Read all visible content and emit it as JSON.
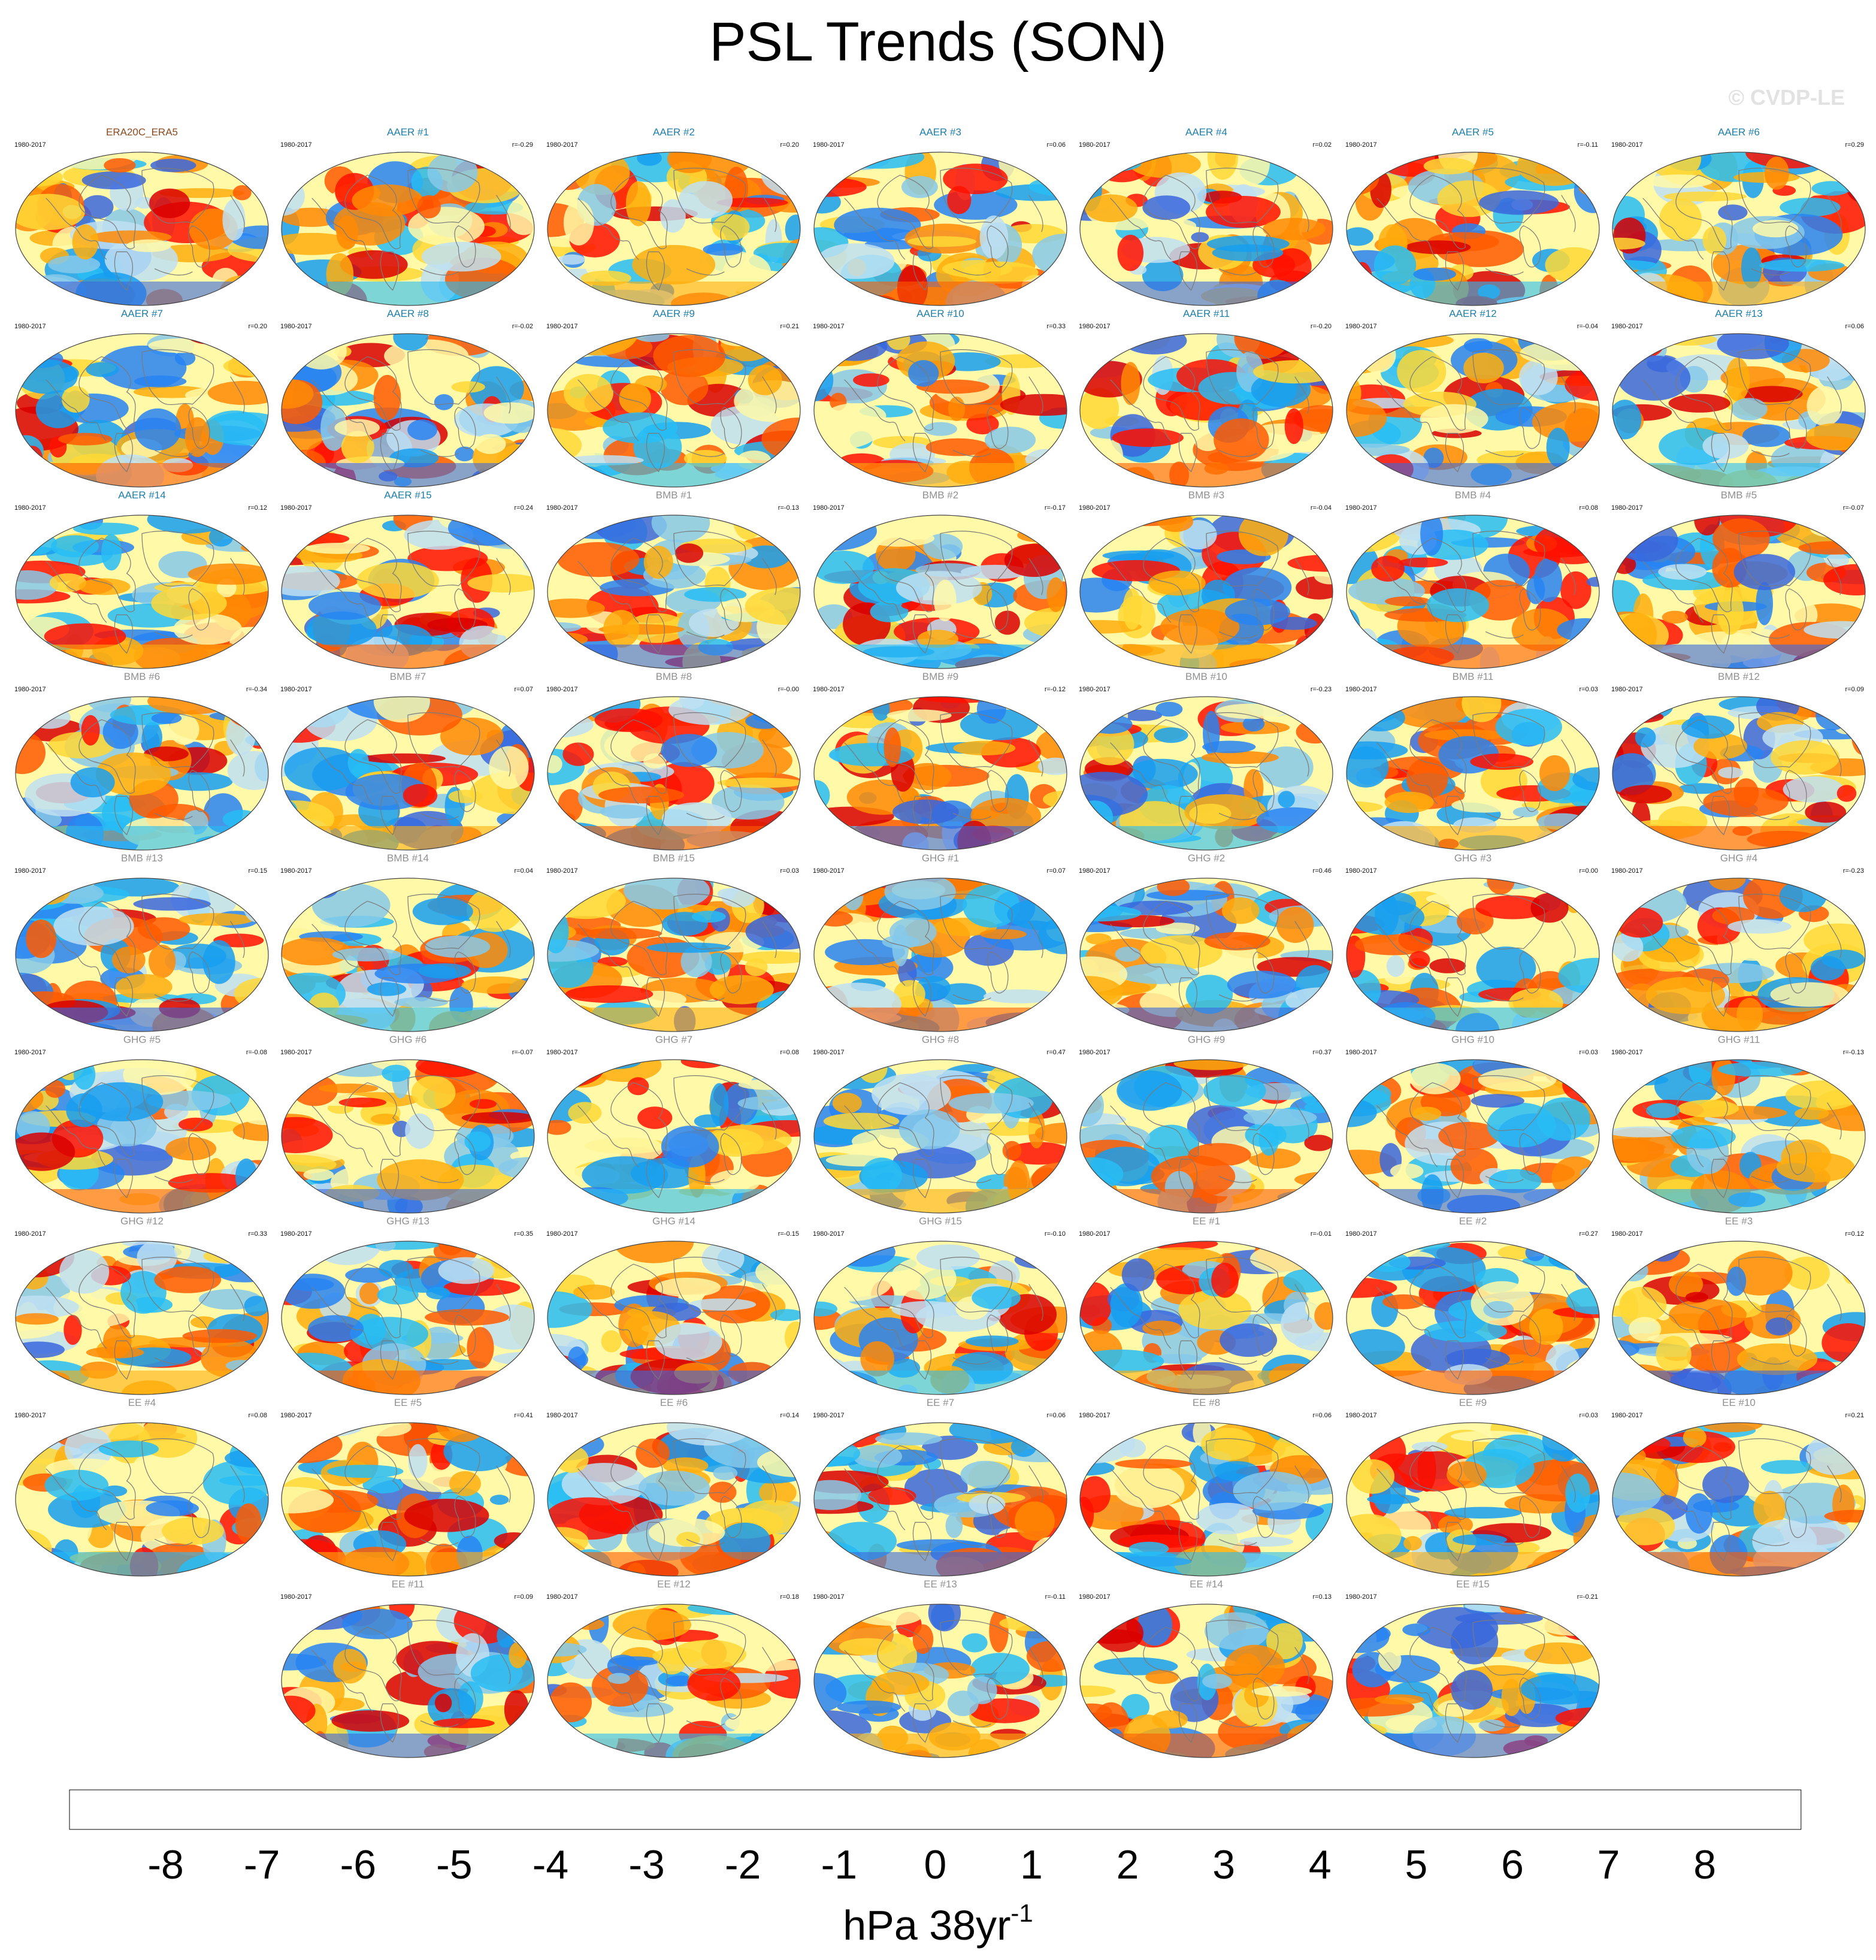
{
  "title": "PSL Trends (SON)",
  "copyright": "© CVDP-LE",
  "chart_data": {
    "type": "heatmap",
    "title": "PSL Trends (SON)",
    "period": "1980-2017",
    "colors": {
      "reference_name": "#8a4b1e",
      "aer_name": "#1f7fa8",
      "other_name": "#909090",
      "land_outline": "#7a7a7a"
    },
    "panels": [
      {
        "name": "ERA20C_ERA5",
        "r": ""
      },
      {
        "name": "AAER #1",
        "r": "r=-0.29"
      },
      {
        "name": "AAER #2",
        "r": "r=0.20"
      },
      {
        "name": "AAER #3",
        "r": "r=0.06"
      },
      {
        "name": "AAER #4",
        "r": "r=0.02"
      },
      {
        "name": "AAER #5",
        "r": "r=-0.11"
      },
      {
        "name": "AAER #6",
        "r": "r=0.29"
      },
      {
        "name": "AAER #7",
        "r": "r=0.20"
      },
      {
        "name": "AAER #8",
        "r": "r=-0.02"
      },
      {
        "name": "AAER #9",
        "r": "r=0.21"
      },
      {
        "name": "AAER #10",
        "r": "r=0.33"
      },
      {
        "name": "AAER #11",
        "r": "r=-0.20"
      },
      {
        "name": "AAER #12",
        "r": "r=-0.04"
      },
      {
        "name": "AAER #13",
        "r": "r=0.06"
      },
      {
        "name": "AAER #14",
        "r": "r=0.12"
      },
      {
        "name": "AAER #15",
        "r": "r=0.24"
      },
      {
        "name": "BMB #1",
        "r": "r=-0.13"
      },
      {
        "name": "BMB #2",
        "r": "r=-0.17"
      },
      {
        "name": "BMB #3",
        "r": "r=-0.04"
      },
      {
        "name": "BMB #4",
        "r": "r=0.08"
      },
      {
        "name": "BMB #5",
        "r": "r=-0.07"
      },
      {
        "name": "BMB #6",
        "r": "r=-0.34"
      },
      {
        "name": "BMB #7",
        "r": "r=0.07"
      },
      {
        "name": "BMB #8",
        "r": "r=-0.00"
      },
      {
        "name": "BMB #9",
        "r": "r=-0.12"
      },
      {
        "name": "BMB #10",
        "r": "r=-0.23"
      },
      {
        "name": "BMB #11",
        "r": "r=0.03"
      },
      {
        "name": "BMB #12",
        "r": "r=0.09"
      },
      {
        "name": "BMB #13",
        "r": "r=0.15"
      },
      {
        "name": "BMB #14",
        "r": "r=0.04"
      },
      {
        "name": "BMB #15",
        "r": "r=0.03"
      },
      {
        "name": "GHG #1",
        "r": "r=0.07"
      },
      {
        "name": "GHG #2",
        "r": "r=0.46"
      },
      {
        "name": "GHG #3",
        "r": "r=0.00"
      },
      {
        "name": "GHG #4",
        "r": "r=-0.23"
      },
      {
        "name": "GHG #5",
        "r": "r=-0.08"
      },
      {
        "name": "GHG #6",
        "r": "r=-0.07"
      },
      {
        "name": "GHG #7",
        "r": "r=0.08"
      },
      {
        "name": "GHG #8",
        "r": "r=0.47"
      },
      {
        "name": "GHG #9",
        "r": "r=0.37"
      },
      {
        "name": "GHG #10",
        "r": "r=0.03"
      },
      {
        "name": "GHG #11",
        "r": "r=-0.13"
      },
      {
        "name": "GHG #12",
        "r": "r=0.33"
      },
      {
        "name": "GHG #13",
        "r": "r=0.35"
      },
      {
        "name": "GHG #14",
        "r": "r=-0.15"
      },
      {
        "name": "GHG #15",
        "r": "r=-0.10"
      },
      {
        "name": "EE #1",
        "r": "r=-0.01"
      },
      {
        "name": "EE #2",
        "r": "r=0.27"
      },
      {
        "name": "EE #3",
        "r": "r=0.12"
      },
      {
        "name": "EE #4",
        "r": "r=0.08"
      },
      {
        "name": "EE #5",
        "r": "r=0.41"
      },
      {
        "name": "EE #6",
        "r": "r=0.14"
      },
      {
        "name": "EE #7",
        "r": "r=0.06"
      },
      {
        "name": "EE #8",
        "r": "r=0.06"
      },
      {
        "name": "EE #9",
        "r": "r=0.03"
      },
      {
        "name": "EE #10",
        "r": "r=0.21"
      },
      {
        "name": "EE #11",
        "r": "r=0.09"
      },
      {
        "name": "EE #12",
        "r": "r=0.18"
      },
      {
        "name": "EE #13",
        "r": "r=-0.11"
      },
      {
        "name": "EE #14",
        "r": "r=0.13"
      },
      {
        "name": "EE #15",
        "r": "r=-0.21"
      }
    ],
    "colorbar": {
      "ticks": [
        "-8",
        "-7",
        "-6",
        "-5",
        "-4",
        "-3",
        "-2",
        "-1",
        "0",
        "1",
        "2",
        "3",
        "4",
        "5",
        "6",
        "7",
        "8"
      ],
      "colors": [
        "#8b2ff0",
        "#2a10f5",
        "#1f3ae0",
        "#3a67dd",
        "#2884f2",
        "#179ff0",
        "#27bdf5",
        "#86c9ea",
        "#bfe0f2",
        "#fff9a8",
        "#ffd835",
        "#ffae0d",
        "#ff8a05",
        "#ff5b00",
        "#ff1000",
        "#d90000",
        "#d42a2a",
        "#ffb3b3"
      ],
      "units": "hPa 38yr",
      "units_exponent": "-1"
    }
  }
}
